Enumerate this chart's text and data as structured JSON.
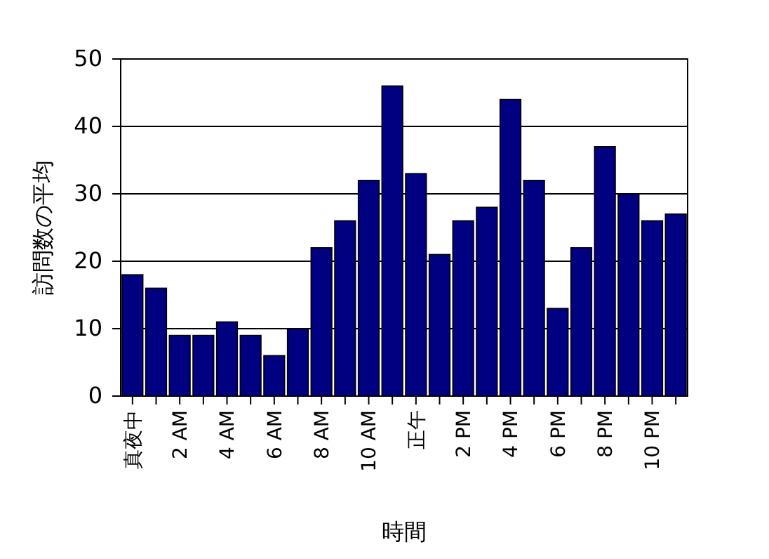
{
  "chart_data": {
    "type": "bar",
    "xlabel": "時間",
    "ylabel": "訪問数の平均",
    "categories": [
      "真夜中",
      null,
      "2 AM",
      null,
      "4 AM",
      null,
      "6 AM",
      null,
      "8 AM",
      null,
      "10 AM",
      null,
      "正午",
      null,
      "2 PM",
      null,
      "4 PM",
      null,
      "6 PM",
      null,
      "8 PM",
      null,
      "10 PM",
      null
    ],
    "values": [
      18,
      16,
      9,
      9,
      11,
      9,
      6,
      10,
      22,
      26,
      32,
      46,
      33,
      21,
      26,
      28,
      44,
      32,
      13,
      22,
      37,
      30,
      26,
      27
    ],
    "color": "#000080",
    "ylim": [
      0,
      50
    ],
    "yticks": [
      0,
      10,
      20,
      30,
      40,
      50
    ],
    "grid": "y"
  }
}
